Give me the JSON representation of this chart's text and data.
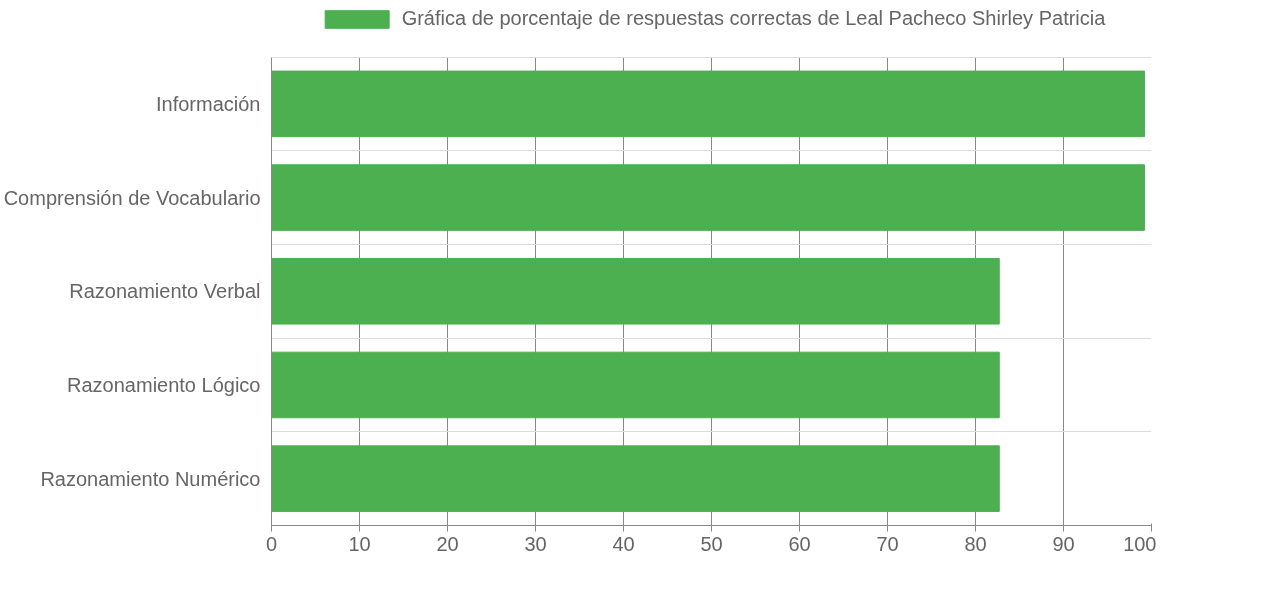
{
  "chart_data": {
    "type": "bar",
    "orientation": "horizontal",
    "categories": [
      "Información",
      "Comprensión de Vocabulario",
      "Razonamiento Verbal",
      "Razonamiento Lógico",
      "Razonamiento Numérico"
    ],
    "series": [
      {
        "name": "Gráfica de porcentaje de respuestas correctas de Leal Pacheco Shirley Patricia",
        "color": "#4caf50",
        "values": [
          99.2,
          99.2,
          82.7,
          82.7,
          82.7
        ]
      }
    ],
    "xlim": [
      0,
      100
    ],
    "xticks": [
      0,
      10,
      20,
      30,
      40,
      50,
      60,
      70,
      80,
      90,
      100
    ],
    "grid": true,
    "legend": "top"
  }
}
